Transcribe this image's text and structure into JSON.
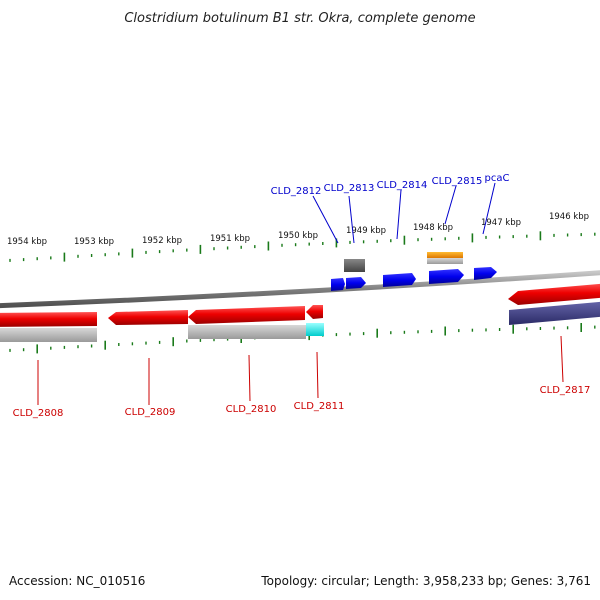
{
  "title": "Clostridium botulinum B1 str. Okra, complete genome",
  "scale": {
    "tick_labels": [
      "1954 kbp",
      "1953 kbp",
      "1952 kbp",
      "1951 kbp",
      "1950 kbp",
      "1949 kbp",
      "1948 kbp",
      "1947 kbp",
      "1946 kbp"
    ]
  },
  "genes_top": [
    {
      "name": "CLD_2812"
    },
    {
      "name": "CLD_2813"
    },
    {
      "name": "CLD_2814"
    },
    {
      "name": "CLD_2815"
    },
    {
      "name": "pcaC"
    }
  ],
  "genes_bottom": [
    {
      "name": "CLD_2808"
    },
    {
      "name": "CLD_2809"
    },
    {
      "name": "CLD_2810"
    },
    {
      "name": "CLD_2811"
    },
    {
      "name": "CLD_2817"
    }
  ],
  "footer": {
    "accession": "Accession: NC_010516",
    "summary": "Topology: circular; Length: 3,958,233 bp; Genes: 3,761"
  },
  "colors": {
    "backbone": "#808080",
    "forward_gene": "#0000ee",
    "reverse_gene": "#ee0000",
    "tick": "#1a7a1a",
    "rna_orange": "#ff9900",
    "highlight_cyan": "#00ffff",
    "dark_gene": "#333377"
  }
}
